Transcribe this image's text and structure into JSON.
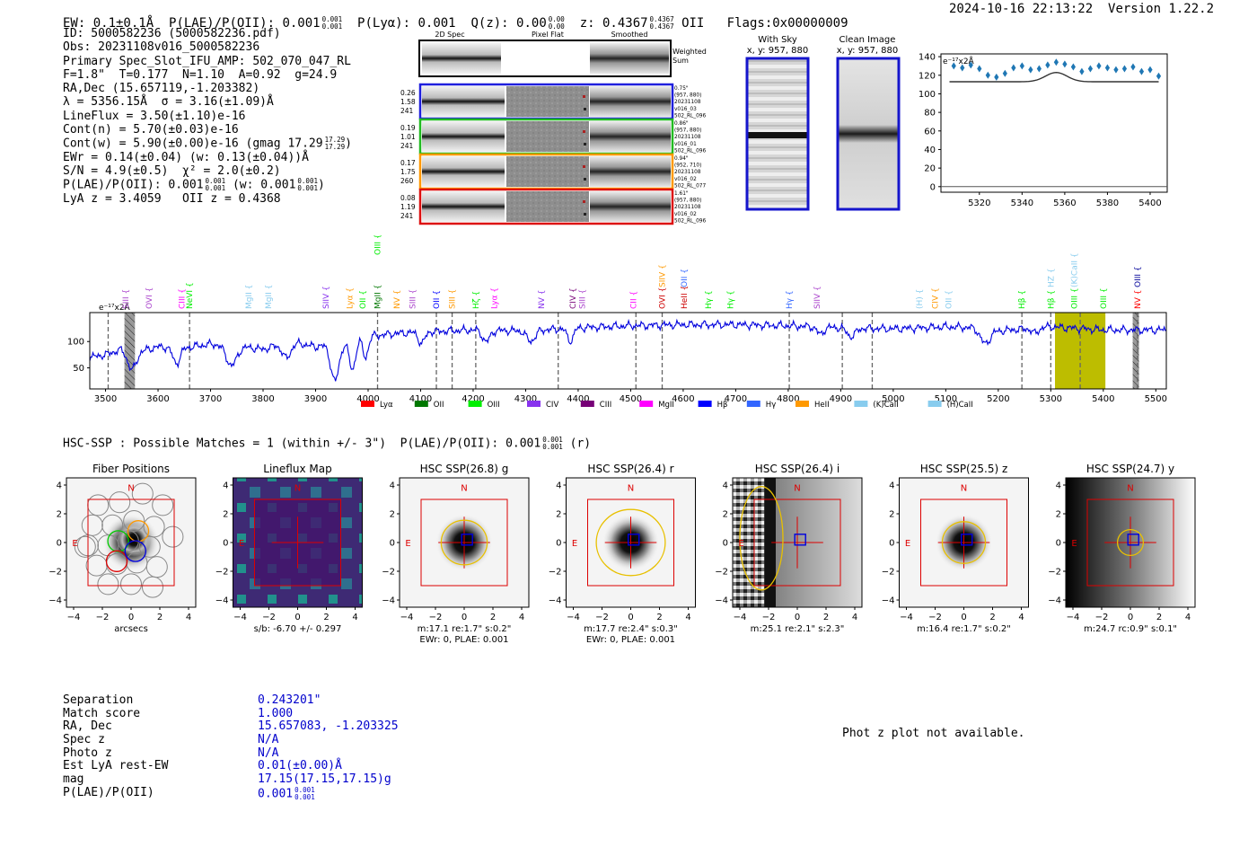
{
  "header": {
    "ew": "EW: 0.1±0.1Å",
    "plae_label": "P(LAE)/P(OII): 0.001",
    "plae_hi": "0.001",
    "plae_lo": "0.001",
    "plya": "P(Lyα): 0.001",
    "qz_label": "Q(z): 0.00",
    "qz_hi": "0.00",
    "qz_lo": "0.00",
    "z_label": "z: 0.4367",
    "z_hi": "0.4367",
    "z_lo": "0.4367",
    "z_line": "OII",
    "flags": "Flags:0x00000009",
    "datetime": "2024-10-16 22:13:22",
    "version": "Version 1.22.2"
  },
  "info": {
    "id": "ID: 5000582236 (5000582236.pdf)",
    "obs": "Obs: 20231108v016_5000582236",
    "primary": "Primary Spec_Slot_IFU_AMP: 502_070_047_RL",
    "params": "F=1.8\"  T=0.177  N=1.10  A=0.92  g=24.9",
    "radec": "RA,Dec (15.657119,-1.203382)",
    "lambda": "λ = 5356.15Å  σ = 3.16(±1.09)Å",
    "lineflux": "LineFlux = 3.50(±1.10)e-16",
    "contn": "Cont(n) = 5.70(±0.03)e-16",
    "contw": "Cont(w) = 5.90(±0.00)e-16 (gmag 17.29",
    "contw_hi": "17.29",
    "contw_lo": "17.29",
    "contw_close": ")",
    "ewr": "EWr = 0.14(±0.04) (w: 0.13(±0.04))Å",
    "sn": "S/N = 4.9(±0.5)  χ² = 2.0(±0.2)",
    "plae": "P(LAE)/P(OII): 0.001",
    "plae_hi": "0.001",
    "plae_lo": "0.001",
    "plae_w": " (w: 0.001",
    "plae_w_hi": "0.001",
    "plae_w_lo": "0.001",
    "plae_w_close": ")",
    "lya_z": "LyA z = 3.4059   OII z = 0.4368"
  },
  "cutouts": {
    "col_titles": [
      "2D Spec",
      "Pixel Flat",
      "Smoothed"
    ],
    "weighted_sum": [
      "Weighted",
      "Sum"
    ],
    "rows": [
      {
        "color": "#1f1fdd",
        "left": [
          "0.26",
          "1.58",
          "241"
        ],
        "right": [
          "0.75\"",
          "(957, 880)",
          "20231108",
          "v016_03",
          "502_RL_096"
        ]
      },
      {
        "color": "#22bb22",
        "left": [
          "0.19",
          "1.01",
          "241"
        ],
        "right": [
          "0.86\"",
          "(957, 880)",
          "20231108",
          "v016_01",
          "502_RL_096"
        ]
      },
      {
        "color": "#ff9900",
        "left": [
          "0.17",
          "1.75",
          "260"
        ],
        "right": [
          "0.94\"",
          "(952, 710)",
          "20231108",
          "v016_02",
          "502_RL_077"
        ]
      },
      {
        "color": "#dd1111",
        "left": [
          "0.08",
          "1.19",
          "241"
        ],
        "right": [
          "1.61\"",
          "(957, 880)",
          "20231108",
          "v016_02",
          "502_RL_096"
        ]
      }
    ]
  },
  "sky": {
    "with_sky": "With Sky",
    "clean": "Clean Image",
    "coords": "x, y: 957, 880"
  },
  "phot_z": "Phot z plot not available.",
  "hsc_line": {
    "text": "HSC-SSP : Possible Matches = 1 (within +/- 3\")  P(LAE)/P(OII): 0.001",
    "hi": "0.001",
    "lo": "0.001",
    "band": " (r)"
  },
  "table": [
    {
      "k": "Separation",
      "v": "0.243201\""
    },
    {
      "k": "Match score",
      "v": "1.000"
    },
    {
      "k": "RA, Dec",
      "v": "15.657083, -1.203325"
    },
    {
      "k": "Spec z",
      "v": "N/A"
    },
    {
      "k": "Photo z",
      "v": "N/A"
    },
    {
      "k": "Est LyA rest-EW",
      "v": "0.01(±0.00)Å"
    },
    {
      "k": "mag",
      "v": "17.15(17.15,17.15)g"
    },
    {
      "k": "P(LAE)/P(OII)",
      "v": "0.001",
      "hi": "0.001",
      "lo": "0.001"
    }
  ],
  "chart_data": [
    {
      "type": "scatter",
      "name": "zoom-spectrum",
      "unit_label": "e⁻¹⁷x2Å",
      "x": [
        5308,
        5312,
        5316,
        5320,
        5324,
        5328,
        5332,
        5336,
        5340,
        5344,
        5348,
        5352,
        5356,
        5360,
        5364,
        5368,
        5372,
        5376,
        5380,
        5384,
        5388,
        5392,
        5396,
        5400,
        5404
      ],
      "y": [
        130,
        128,
        131,
        127,
        120,
        118,
        122,
        128,
        130,
        126,
        127,
        131,
        134,
        132,
        129,
        124,
        127,
        130,
        128,
        126,
        127,
        129,
        124,
        126,
        119
      ],
      "fit_baseline": 113,
      "fit_peak": 123,
      "fit_center": 5356,
      "xticks": [
        5320,
        5340,
        5360,
        5380,
        5400
      ],
      "yticks": [
        0,
        20,
        40,
        60,
        80,
        100,
        120,
        140
      ],
      "xlim": [
        5302,
        5408
      ],
      "ylim": [
        -6,
        143
      ]
    },
    {
      "type": "line",
      "name": "full-spectrum",
      "unit_label": "e⁻¹⁷x2Å",
      "xlim": [
        3470,
        5520
      ],
      "ylim": [
        10,
        155
      ],
      "xticks": [
        3500,
        3600,
        3700,
        3800,
        3900,
        4000,
        4100,
        4200,
        4300,
        4400,
        4500,
        4600,
        4700,
        4800,
        4900,
        5000,
        5100,
        5200,
        5300,
        5400,
        5500
      ],
      "yticks": [
        50,
        100
      ],
      "continuum": [
        [
          3470,
          70
        ],
        [
          3500,
          75
        ],
        [
          3530,
          85
        ],
        [
          3560,
          80
        ],
        [
          3600,
          90
        ],
        [
          3650,
          88
        ],
        [
          3700,
          95
        ],
        [
          3750,
          92
        ],
        [
          3800,
          85
        ],
        [
          3850,
          100
        ],
        [
          3900,
          90
        ],
        [
          3950,
          100
        ],
        [
          4000,
          110
        ],
        [
          4050,
          115
        ],
        [
          4100,
          118
        ],
        [
          4200,
          122
        ],
        [
          4300,
          120
        ],
        [
          4400,
          126
        ],
        [
          4500,
          130
        ],
        [
          4600,
          132
        ],
        [
          4700,
          132
        ],
        [
          4800,
          130
        ],
        [
          4900,
          126
        ],
        [
          5000,
          124
        ],
        [
          5100,
          128
        ],
        [
          5160,
          126
        ],
        [
          5200,
          120
        ],
        [
          5300,
          128
        ],
        [
          5400,
          122
        ],
        [
          5520,
          122
        ]
      ],
      "absorptions": [
        [
          3550,
          35,
          8
        ],
        [
          3635,
          30,
          7
        ],
        [
          3740,
          38,
          10
        ],
        [
          3845,
          30,
          8
        ],
        [
          3937,
          72,
          8
        ],
        [
          3970,
          58,
          6
        ],
        [
          3995,
          40,
          5
        ],
        [
          4102,
          22,
          6
        ],
        [
          4225,
          22,
          7
        ],
        [
          4310,
          20,
          8
        ],
        [
          4385,
          24,
          6
        ],
        [
          4861,
          14,
          6
        ],
        [
          4920,
          16,
          8
        ],
        [
          5175,
          28,
          9
        ],
        [
          5270,
          10,
          6
        ]
      ],
      "dashed_lines": [
        3505,
        3660,
        4018,
        4130,
        4160,
        4205,
        4362,
        4510,
        4560,
        4802,
        4903,
        4960,
        5245,
        5300,
        5356,
        5465
      ],
      "hatched": [
        [
          3536,
          3556
        ],
        [
          5456,
          5468
        ]
      ],
      "highlight": [
        5308,
        5404
      ],
      "legend": [
        {
          "label": "Lyα",
          "color": "#ff0000"
        },
        {
          "label": "OII",
          "color": "#007700"
        },
        {
          "label": "OIII",
          "color": "#00ee00"
        },
        {
          "label": "CIV",
          "color": "#8833ee"
        },
        {
          "label": "CIII",
          "color": "#770077"
        },
        {
          "label": "MgII",
          "color": "#ff00ff"
        },
        {
          "label": "Hβ",
          "color": "#0000ff"
        },
        {
          "label": "Hγ",
          "color": "#3366ff"
        },
        {
          "label": "HeII",
          "color": "#ff9900"
        },
        {
          "label": "(K)CaII",
          "color": "#88ccee"
        },
        {
          "label": "(H)CaII",
          "color": "#88ccee"
        }
      ],
      "line_labels": [
        {
          "x": 3538,
          "label": "SIII",
          "color": "#aa44cc",
          "tier": 0
        },
        {
          "x": 3583,
          "label": "OVI",
          "color": "#aa44cc",
          "tier": 0
        },
        {
          "x": 3645,
          "label": "CIII",
          "color": "#ff00ff",
          "tier": 0
        },
        {
          "x": 3660,
          "label": "NeVI",
          "color": "#00ee00",
          "tier": 0
        },
        {
          "x": 3773,
          "label": "MgII",
          "color": "#88ccee",
          "tier": 0
        },
        {
          "x": 3810,
          "label": "MgII",
          "color": "#88ccee",
          "tier": 0
        },
        {
          "x": 3920,
          "label": "SIIV",
          "color": "#8833ee",
          "tier": 0
        },
        {
          "x": 3965,
          "label": "Lyα",
          "color": "#ff9900",
          "tier": 0
        },
        {
          "x": 3990,
          "label": "OII",
          "color": "#00ee00",
          "tier": 0
        },
        {
          "x": 4018,
          "label": "MgII",
          "color": "#007700",
          "tier": 0
        },
        {
          "x": 4018,
          "label": "OIII",
          "color": "#00ee00",
          "tier": 2
        },
        {
          "x": 4055,
          "label": "NV",
          "color": "#ff9900",
          "tier": 0
        },
        {
          "x": 4085,
          "label": "SIII",
          "color": "#aa44cc",
          "tier": 0
        },
        {
          "x": 4130,
          "label": "OII",
          "color": "#0000ff",
          "tier": 0
        },
        {
          "x": 4160,
          "label": "SIII",
          "color": "#ff9900",
          "tier": 0
        },
        {
          "x": 4205,
          "label": "Hζ",
          "color": "#00ee00",
          "tier": 0
        },
        {
          "x": 4240,
          "label": "Lyα",
          "color": "#ff00ff",
          "tier": 0
        },
        {
          "x": 4330,
          "label": "NV",
          "color": "#8833ee",
          "tier": 0
        },
        {
          "x": 4390,
          "label": "CIV",
          "color": "#770077",
          "tier": 0
        },
        {
          "x": 4408,
          "label": "SIII",
          "color": "#aa44cc",
          "tier": 0
        },
        {
          "x": 4505,
          "label": "CII",
          "color": "#ff00ff",
          "tier": 0
        },
        {
          "x": 4560,
          "label": "OVI",
          "color": "#cc0000",
          "tier": 0
        },
        {
          "x": 4560,
          "label": "SIIV",
          "color": "#ff9900",
          "tier": 1
        },
        {
          "x": 4602,
          "label": "HeII",
          "color": "#cc0000",
          "tier": 0
        },
        {
          "x": 4602,
          "label": "OII",
          "color": "#3366ff",
          "tier": 1
        },
        {
          "x": 4648,
          "label": "Hγ",
          "color": "#00ee00",
          "tier": 0
        },
        {
          "x": 4690,
          "label": "Hγ",
          "color": "#00ee00",
          "tier": 0
        },
        {
          "x": 4802,
          "label": "Hγ",
          "color": "#3366ff",
          "tier": 0
        },
        {
          "x": 4855,
          "label": "SIIV",
          "color": "#aa44cc",
          "tier": 0
        },
        {
          "x": 5050,
          "label": "(H)",
          "color": "#88ccee",
          "tier": 0
        },
        {
          "x": 5080,
          "label": "CIV",
          "color": "#ff9900",
          "tier": 0
        },
        {
          "x": 5105,
          "label": "OII",
          "color": "#88ccee",
          "tier": 0
        },
        {
          "x": 5245,
          "label": "Hβ",
          "color": "#00ee00",
          "tier": 0
        },
        {
          "x": 5300,
          "label": "Hβ",
          "color": "#00ee00",
          "tier": 0
        },
        {
          "x": 5300,
          "label": "HZ",
          "color": "#88ccee",
          "tier": 1
        },
        {
          "x": 5345,
          "label": "OIII",
          "color": "#00ee00",
          "tier": 0
        },
        {
          "x": 5345,
          "label": "(K)CaII",
          "color": "#88ccee",
          "tier": 1
        },
        {
          "x": 5400,
          "label": "OIII",
          "color": "#00ee00",
          "tier": 0
        },
        {
          "x": 5465,
          "label": "NV",
          "color": "#ff0000",
          "tier": 0
        },
        {
          "x": 5465,
          "label": "OIII",
          "color": "#000099",
          "tier": 1
        }
      ]
    },
    {
      "type": "heatmap",
      "name": "thumbnails",
      "xticks": [
        -4,
        -2,
        0,
        2,
        4
      ],
      "yticks": [
        4,
        2,
        0,
        -2,
        -4
      ],
      "north": "N",
      "east": "E",
      "panels": [
        {
          "title": "Fiber Positions",
          "captions": [
            "arcsecs"
          ],
          "kind": "fibers"
        },
        {
          "title": "Lineflux Map",
          "captions": [
            "s/b: -6.70 +/- 0.297"
          ],
          "kind": "lineflux"
        },
        {
          "title": "HSC SSP(26.8) g",
          "captions": [
            "m:17.1  re:1.7\"  s:0.2\"",
            "EWr: 0, PLAE: 0.001"
          ],
          "kind": "source",
          "ellipse_rx": 1.6,
          "ellipse_ry": 1.55
        },
        {
          "title": "HSC SSP(26.4) r",
          "captions": [
            "m:17.7  re:2.4\"  s:0.3\"",
            "EWr: 0, PLAE: 0.001"
          ],
          "kind": "source",
          "ellipse_rx": 2.4,
          "ellipse_ry": 2.3
        },
        {
          "title": "HSC SSP(26.4) i",
          "captions": [
            "m:25.1  re:2.1\"  s:2.3\""
          ],
          "kind": "gradient-i"
        },
        {
          "title": "HSC SSP(25.5) z",
          "captions": [
            "m:16.4  re:1.7\"  s:0.2\""
          ],
          "kind": "source",
          "ellipse_rx": 1.5,
          "ellipse_ry": 1.45
        },
        {
          "title": "HSC SSP(24.7) y",
          "captions": [
            "m:24.7  rc:0.9\"  s:0.1\""
          ],
          "kind": "gradient-y",
          "ellipse_rx": 0.9,
          "ellipse_ry": 0.9
        }
      ]
    }
  ]
}
